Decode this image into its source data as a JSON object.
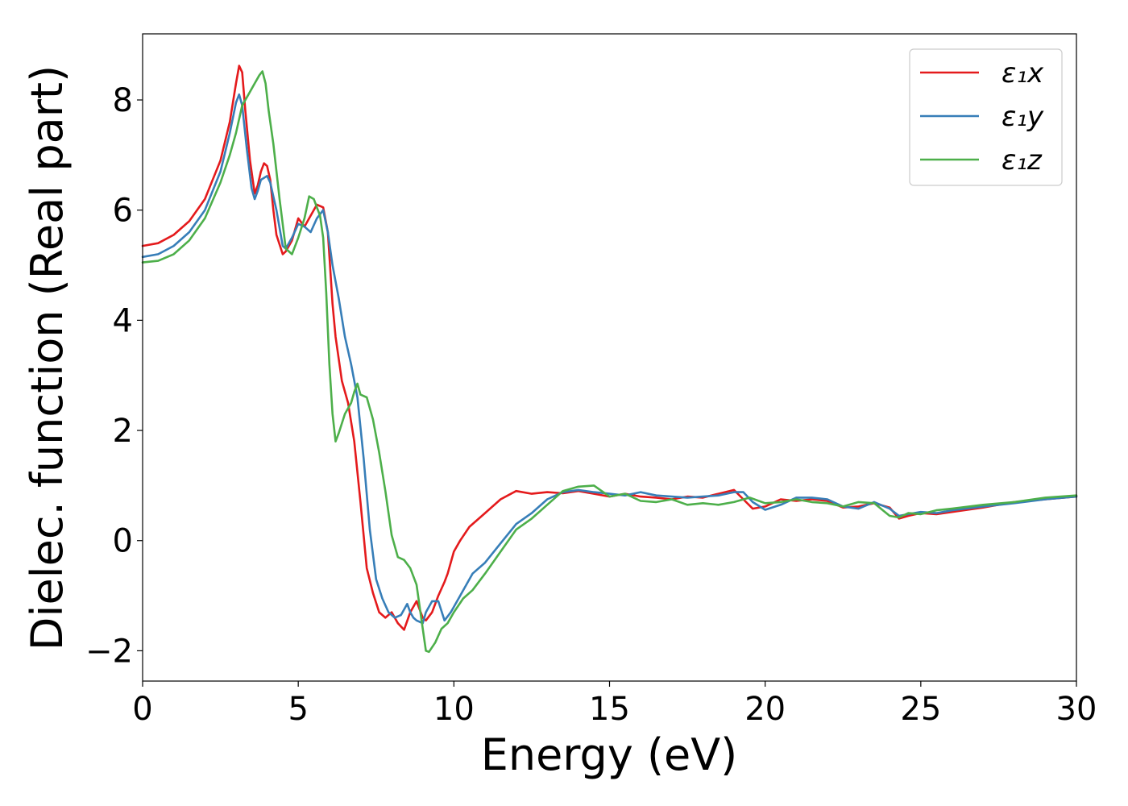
{
  "chart_data": {
    "type": "line",
    "title": "",
    "xlabel": "Energy (eV)",
    "ylabel": "Dielec. function (Real part)",
    "xlim": [
      0,
      30
    ],
    "ylim": [
      -2.55,
      9.2
    ],
    "xticks": [
      0,
      5,
      10,
      15,
      20,
      25,
      30
    ],
    "xtick_labels": [
      "0",
      "5",
      "10",
      "15",
      "20",
      "25",
      "30"
    ],
    "yticks": [
      -2,
      0,
      2,
      4,
      6,
      8
    ],
    "ytick_labels": [
      "−2",
      "0",
      "2",
      "4",
      "6",
      "8"
    ],
    "grid": false,
    "legend_position": "top-right",
    "series": [
      {
        "name": "ε₁x",
        "color": "#e41a1c",
        "x": [
          0,
          0.5,
          1.0,
          1.5,
          2.0,
          2.5,
          2.8,
          3.0,
          3.1,
          3.2,
          3.3,
          3.45,
          3.6,
          3.7,
          3.8,
          3.9,
          4.0,
          4.1,
          4.2,
          4.3,
          4.5,
          4.6,
          4.8,
          5.0,
          5.2,
          5.4,
          5.6,
          5.8,
          5.95,
          6.1,
          6.2,
          6.4,
          6.6,
          6.8,
          7.0,
          7.2,
          7.4,
          7.6,
          7.8,
          8.0,
          8.2,
          8.4,
          8.6,
          8.8,
          9.0,
          9.1,
          9.3,
          9.5,
          9.7,
          9.8,
          10.0,
          10.2,
          10.5,
          11.0,
          11.5,
          12.0,
          12.5,
          13.0,
          13.5,
          14.0,
          14.5,
          15.0,
          15.5,
          16.0,
          16.5,
          17.0,
          17.5,
          18.0,
          18.5,
          19.0,
          19.3,
          19.6,
          20.0,
          20.5,
          21.0,
          21.5,
          22.0,
          22.5,
          23.0,
          23.5,
          24.0,
          24.3,
          24.6,
          25.0,
          25.5,
          26.0,
          27.0,
          28.0,
          29.0,
          30.0
        ],
        "y": [
          5.35,
          5.4,
          5.55,
          5.8,
          6.2,
          6.9,
          7.6,
          8.3,
          8.62,
          8.5,
          7.8,
          6.9,
          6.3,
          6.45,
          6.7,
          6.85,
          6.8,
          6.55,
          6.0,
          5.55,
          5.2,
          5.25,
          5.45,
          5.85,
          5.7,
          5.9,
          6.1,
          6.05,
          5.6,
          4.3,
          3.7,
          2.9,
          2.5,
          1.8,
          0.7,
          -0.5,
          -0.95,
          -1.3,
          -1.4,
          -1.3,
          -1.5,
          -1.62,
          -1.3,
          -1.1,
          -1.4,
          -1.45,
          -1.3,
          -1.0,
          -0.75,
          -0.6,
          -0.2,
          0.0,
          0.25,
          0.5,
          0.75,
          0.9,
          0.85,
          0.88,
          0.86,
          0.9,
          0.85,
          0.8,
          0.85,
          0.8,
          0.78,
          0.75,
          0.8,
          0.78,
          0.85,
          0.92,
          0.75,
          0.58,
          0.62,
          0.75,
          0.72,
          0.75,
          0.72,
          0.6,
          0.62,
          0.68,
          0.6,
          0.4,
          0.45,
          0.5,
          0.48,
          0.52,
          0.6,
          0.7,
          0.75,
          0.8
        ]
      },
      {
        "name": "ε₁y",
        "color": "#377eb8",
        "x": [
          0,
          0.5,
          1.0,
          1.5,
          2.0,
          2.5,
          2.8,
          3.0,
          3.1,
          3.2,
          3.35,
          3.5,
          3.6,
          3.7,
          3.8,
          4.0,
          4.1,
          4.3,
          4.5,
          4.6,
          4.8,
          5.0,
          5.2,
          5.4,
          5.6,
          5.8,
          5.95,
          6.1,
          6.3,
          6.5,
          6.7,
          6.9,
          7.1,
          7.3,
          7.5,
          7.7,
          7.9,
          8.1,
          8.3,
          8.5,
          8.6,
          8.7,
          8.8,
          9.0,
          9.1,
          9.3,
          9.5,
          9.7,
          9.9,
          10.2,
          10.6,
          11.0,
          11.5,
          12.0,
          12.5,
          13.0,
          13.5,
          14.0,
          14.5,
          15.0,
          15.5,
          16.0,
          16.5,
          17.0,
          17.5,
          18.0,
          18.5,
          19.0,
          19.3,
          19.6,
          20.0,
          20.5,
          21.0,
          21.5,
          22.0,
          22.5,
          23.0,
          23.5,
          24.0,
          24.3,
          24.6,
          25.0,
          25.5,
          26.0,
          27.0,
          28.0,
          29.0,
          30.0
        ],
        "y": [
          5.15,
          5.2,
          5.35,
          5.6,
          6.0,
          6.7,
          7.4,
          7.95,
          8.1,
          7.9,
          7.1,
          6.4,
          6.2,
          6.35,
          6.55,
          6.62,
          6.5,
          6.0,
          5.35,
          5.3,
          5.5,
          5.75,
          5.7,
          5.6,
          5.85,
          6.0,
          5.6,
          5.0,
          4.4,
          3.7,
          3.2,
          2.6,
          1.5,
          0.2,
          -0.7,
          -1.05,
          -1.3,
          -1.4,
          -1.35,
          -1.15,
          -1.3,
          -1.4,
          -1.45,
          -1.5,
          -1.3,
          -1.1,
          -1.1,
          -1.45,
          -1.3,
          -1.0,
          -0.6,
          -0.4,
          -0.05,
          0.3,
          0.5,
          0.75,
          0.88,
          0.92,
          0.88,
          0.85,
          0.82,
          0.88,
          0.82,
          0.8,
          0.78,
          0.8,
          0.82,
          0.88,
          0.88,
          0.7,
          0.56,
          0.65,
          0.78,
          0.78,
          0.75,
          0.62,
          0.58,
          0.7,
          0.58,
          0.45,
          0.48,
          0.52,
          0.5,
          0.55,
          0.62,
          0.68,
          0.75,
          0.8
        ]
      },
      {
        "name": "ε₁z",
        "color": "#4daf4a",
        "x": [
          0,
          0.5,
          1.0,
          1.5,
          2.0,
          2.5,
          2.8,
          3.0,
          3.2,
          3.4,
          3.6,
          3.75,
          3.85,
          3.95,
          4.05,
          4.2,
          4.4,
          4.6,
          4.8,
          5.0,
          5.2,
          5.35,
          5.5,
          5.6,
          5.7,
          5.8,
          5.9,
          6.0,
          6.1,
          6.2,
          6.3,
          6.5,
          6.7,
          6.8,
          6.9,
          7.0,
          7.2,
          7.4,
          7.6,
          7.8,
          8.0,
          8.2,
          8.4,
          8.6,
          8.8,
          9.0,
          9.1,
          9.2,
          9.4,
          9.6,
          9.8,
          10.0,
          10.3,
          10.6,
          11.0,
          11.5,
          12.0,
          12.5,
          13.0,
          13.5,
          14.0,
          14.5,
          15.0,
          15.5,
          16.0,
          16.5,
          17.0,
          17.5,
          18.0,
          18.5,
          19.0,
          19.5,
          20.0,
          20.5,
          21.0,
          21.5,
          22.0,
          22.5,
          23.0,
          23.5,
          24.0,
          24.3,
          24.6,
          25.0,
          25.5,
          26.0,
          27.0,
          28.0,
          29.0,
          30.0
        ],
        "y": [
          5.05,
          5.08,
          5.2,
          5.45,
          5.85,
          6.5,
          7.0,
          7.4,
          7.9,
          8.1,
          8.3,
          8.45,
          8.52,
          8.3,
          7.8,
          7.2,
          6.2,
          5.3,
          5.2,
          5.5,
          5.85,
          6.25,
          6.2,
          6.05,
          5.9,
          5.5,
          4.5,
          3.2,
          2.3,
          1.8,
          1.95,
          2.3,
          2.5,
          2.7,
          2.85,
          2.65,
          2.6,
          2.2,
          1.6,
          0.9,
          0.1,
          -0.3,
          -0.35,
          -0.5,
          -0.8,
          -1.6,
          -2.0,
          -2.02,
          -1.85,
          -1.6,
          -1.5,
          -1.3,
          -1.05,
          -0.9,
          -0.6,
          -0.2,
          0.2,
          0.4,
          0.65,
          0.9,
          0.98,
          1.0,
          0.8,
          0.85,
          0.72,
          0.7,
          0.75,
          0.65,
          0.68,
          0.65,
          0.7,
          0.78,
          0.68,
          0.7,
          0.75,
          0.7,
          0.68,
          0.62,
          0.7,
          0.68,
          0.45,
          0.42,
          0.5,
          0.48,
          0.55,
          0.58,
          0.65,
          0.7,
          0.78,
          0.82
        ]
      }
    ]
  }
}
